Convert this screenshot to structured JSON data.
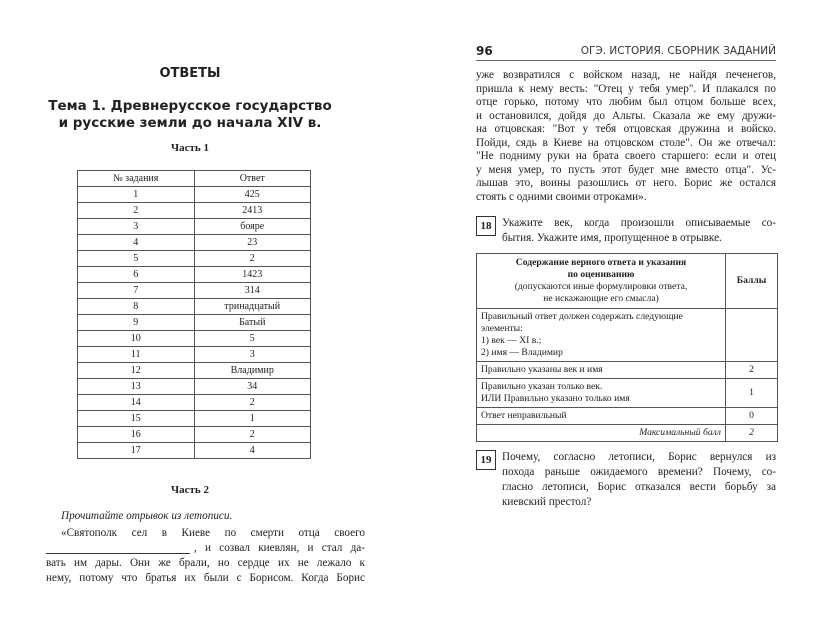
{
  "left_page": {
    "heading": "ОТВЕТЫ",
    "topic_line1": "Тема 1. Древнерусское государство",
    "topic_line2": "и русские земли до начала XIV в.",
    "part1_title": "Часть 1",
    "answers_table": {
      "headers": [
        "№ задания",
        "Ответ"
      ],
      "rows": [
        [
          "1",
          "425"
        ],
        [
          "2",
          "2413"
        ],
        [
          "3",
          "бояре"
        ],
        [
          "4",
          "23"
        ],
        [
          "5",
          "2"
        ],
        [
          "6",
          "1423"
        ],
        [
          "7",
          "314"
        ],
        [
          "8",
          "тринадцатый"
        ],
        [
          "9",
          "Батый"
        ],
        [
          "10",
          "5"
        ],
        [
          "11",
          "3"
        ],
        [
          "12",
          "Владимир"
        ],
        [
          "13",
          "34"
        ],
        [
          "14",
          "2"
        ],
        [
          "15",
          "1"
        ],
        [
          "16",
          "2"
        ],
        [
          "17",
          "4"
        ]
      ]
    },
    "part2_title": "Часть 2",
    "instruction": "Прочитайте отрывок из летописи.",
    "excerpt_lines": [
      "«Святополк сел в Киеве по смерти отца своего",
      ", и созвал киевлян, и стал да-",
      "вать им дары. Они же брали, но сердце их не лежало к",
      "нему, потому что братья их были с Борисом. Когда Борис"
    ]
  },
  "right_page": {
    "page_number": "96",
    "running_title": "ОГЭ. ИСТОРИЯ. СБОРНИК ЗАДАНИЙ",
    "continuation_lines": [
      "уже возвратился с войском назад, не найдя печенегов,",
      "пришла к нему весть: \"Отец у тебя умер\". И плакался по",
      "отце горько, потому что любим был отцом больше всех,",
      "и остановился, дойдя до Альты. Сказала же ему дружи-",
      "на отцовская: \"Вот у тебя отцовская дружина и войско.",
      "Пойди, сядь в Киеве на отцовском столе\". Он же отвечал:",
      "\"Не подниму руки на брата своего старшего: если и отец",
      "у меня умер, то пусть этот будет мне вместо отца\". Ус-",
      "лышав это, воины разошлись от него. Борис же остался",
      "стоять с одними своими отроками»."
    ],
    "q18": {
      "number": "18",
      "lines": [
        "Укажите век, когда произошли описываемые со-",
        "бытия. Укажите имя, пропущенное в отрывке."
      ]
    },
    "criteria_table": {
      "header_bold": [
        "Содержание верного ответа и указания",
        "по оцениванию"
      ],
      "header_normal": [
        "(допускаются иные формулировки ответа,",
        "не искажающие его смысла)"
      ],
      "points_header": "Баллы",
      "required_lines": [
        "Правильный ответ должен содержать следующие",
        "элементы:",
        "1) век — XI в.;",
        "2) имя — Владимир"
      ],
      "rows": [
        {
          "lines": [
            "Правильно указаны век и имя"
          ],
          "points": "2"
        },
        {
          "lines": [
            "Правильно указан только век.",
            "ИЛИ Правильно указано только имя"
          ],
          "points": "1"
        },
        {
          "lines": [
            "Ответ неправильный"
          ],
          "points": "0"
        }
      ],
      "max_label": "Максимальный балл",
      "max_value": "2"
    },
    "q19": {
      "number": "19",
      "lines": [
        "Почему, согласно летописи, Борис вернулся из",
        "похода раньше ожидаемого времени? Почему, со-",
        "гласно летописи, Борис отказался вести борьбу за",
        "киевский престол?"
      ]
    }
  }
}
